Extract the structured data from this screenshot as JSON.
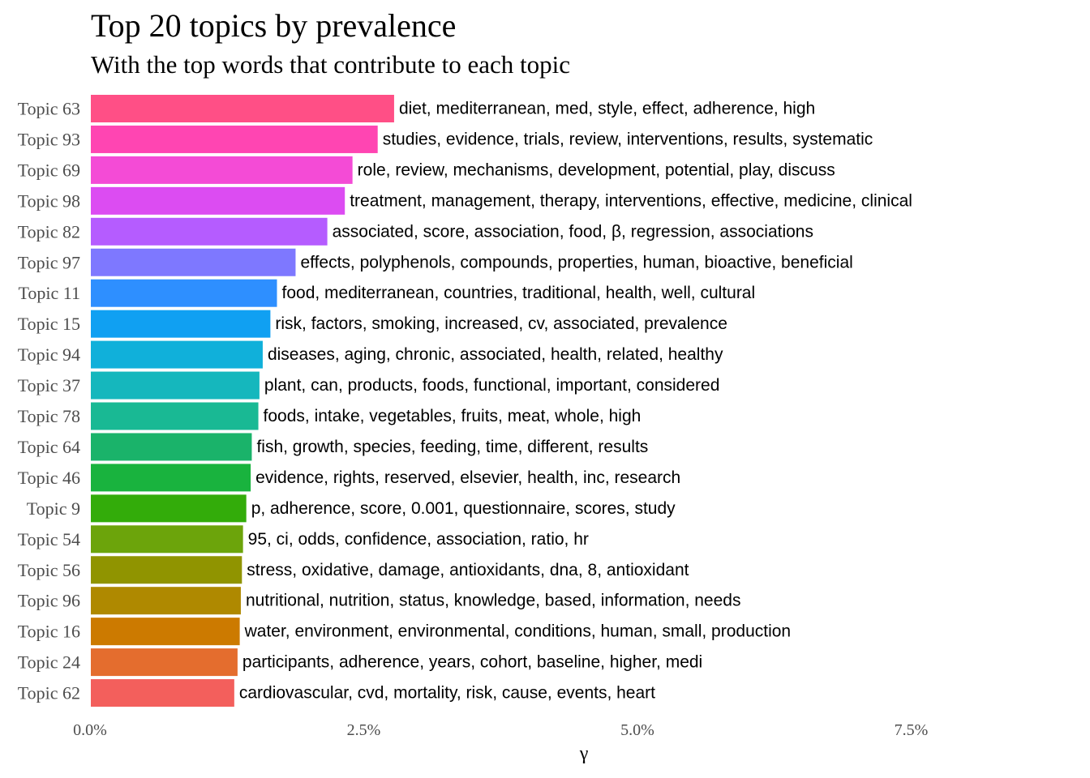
{
  "chart_data": {
    "type": "bar",
    "orientation": "horizontal",
    "title": "Top 20 topics by prevalence",
    "subtitle": "With the top words that contribute to each topic",
    "xlabel": "γ",
    "ylabel": "",
    "xlim": [
      0,
      0.085
    ],
    "x_ticks": [
      0.0,
      0.025,
      0.05,
      0.075
    ],
    "x_tick_labels": [
      "0.0%",
      "2.5%",
      "5.0%",
      "7.5%"
    ],
    "grid": false,
    "legend": "none",
    "categories": [
      "Topic 63",
      "Topic 93",
      "Topic 69",
      "Topic 98",
      "Topic 82",
      "Topic 97",
      "Topic 11",
      "Topic 15",
      "Topic 94",
      "Topic 37",
      "Topic 78",
      "Topic 64",
      "Topic 46",
      "Topic 9",
      "Topic 54",
      "Topic 56",
      "Topic 96",
      "Topic 16",
      "Topic 24",
      "Topic 62"
    ],
    "values": [
      0.0277,
      0.0262,
      0.0239,
      0.0232,
      0.0216,
      0.0187,
      0.017,
      0.0164,
      0.0157,
      0.0154,
      0.0153,
      0.0147,
      0.0146,
      0.0142,
      0.0139,
      0.0138,
      0.0137,
      0.0136,
      0.0134,
      0.0131
    ],
    "terms": [
      "diet, mediterranean, med, style, effect, adherence, high",
      "studies, evidence, trials, review, interventions, results, systematic",
      "role, review, mechanisms, development, potential, play, discuss",
      "treatment, management, therapy, interventions, effective, medicine, clinical",
      "associated, score, association, food, β, regression, associations",
      "effects, polyphenols, compounds, properties, human, bioactive, beneficial",
      "food, mediterranean, countries, traditional, health, well, cultural",
      "risk, factors, smoking, increased, cv, associated, prevalence",
      "diseases, aging, chronic, associated, health, related, healthy",
      "plant, can, products, foods, functional, important, considered",
      "foods, intake, vegetables, fruits, meat, whole, high",
      "fish, growth, species, feeding, time, different, results",
      "evidence, rights, reserved, elsevier, health, inc, research",
      "p, adherence, score, 0.001, questionnaire, scores, study",
      "95, ci, odds, confidence, association, ratio, hr",
      "stress, oxidative, damage, antioxidants, dna, 8, antioxidant",
      "nutritional, nutrition, status, knowledge, based, information, needs",
      "water, environment, environmental, conditions, human, small, production",
      "participants, adherence, years, cohort, baseline, higher, medi",
      "cardiovascular, cvd, mortality, risk, cause, events, heart"
    ],
    "colors": [
      "#FF4F86",
      "#FF45B2",
      "#F44BD6",
      "#DC4CF2",
      "#B55CFF",
      "#7E78FF",
      "#2E8FFF",
      "#10A0F2",
      "#10B0DA",
      "#15B7BD",
      "#19B994",
      "#1AB36A",
      "#19B33E",
      "#33AC0A",
      "#6CA40B",
      "#909400",
      "#AF8900",
      "#CC7A00",
      "#E46D2E",
      "#F35F5C"
    ]
  }
}
